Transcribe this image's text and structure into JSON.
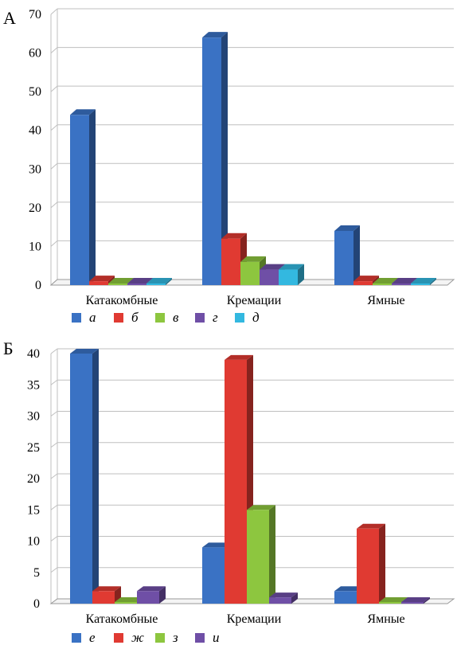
{
  "chart_data": [
    {
      "type": "bar",
      "panel_label": "А",
      "categories": [
        "Катакомбные",
        "Кремации",
        "Ямные"
      ],
      "ylim": [
        0,
        70
      ],
      "yticks": [
        0,
        10,
        20,
        30,
        40,
        50,
        60,
        70
      ],
      "grid": true,
      "legend_position": "bottom-left",
      "series": [
        {
          "name": "а",
          "color": "#3a72c4",
          "values": [
            44,
            64,
            14
          ]
        },
        {
          "name": "б",
          "color": "#e03a32",
          "values": [
            1,
            12,
            1
          ]
        },
        {
          "name": "в",
          "color": "#8dc63f",
          "values": [
            0,
            6,
            0
          ]
        },
        {
          "name": "г",
          "color": "#6f4fa6",
          "values": [
            0,
            4,
            0
          ]
        },
        {
          "name": "д",
          "color": "#33b8e0",
          "values": [
            0,
            4,
            0
          ]
        }
      ]
    },
    {
      "type": "bar",
      "panel_label": "Б",
      "categories": [
        "Катакомбные",
        "Кремации",
        "Ямные"
      ],
      "ylim": [
        0,
        40
      ],
      "yticks": [
        0,
        5,
        10,
        15,
        20,
        25,
        30,
        35,
        40
      ],
      "grid": true,
      "legend_position": "bottom-left",
      "series": [
        {
          "name": "е",
          "color": "#3a72c4",
          "values": [
            40,
            9,
            2
          ]
        },
        {
          "name": "ж",
          "color": "#e03a32",
          "values": [
            2,
            39,
            12
          ]
        },
        {
          "name": "з",
          "color": "#8dc63f",
          "values": [
            0,
            15,
            0
          ]
        },
        {
          "name": "и",
          "color": "#6f4fa6",
          "values": [
            2,
            1,
            0
          ]
        }
      ]
    }
  ]
}
